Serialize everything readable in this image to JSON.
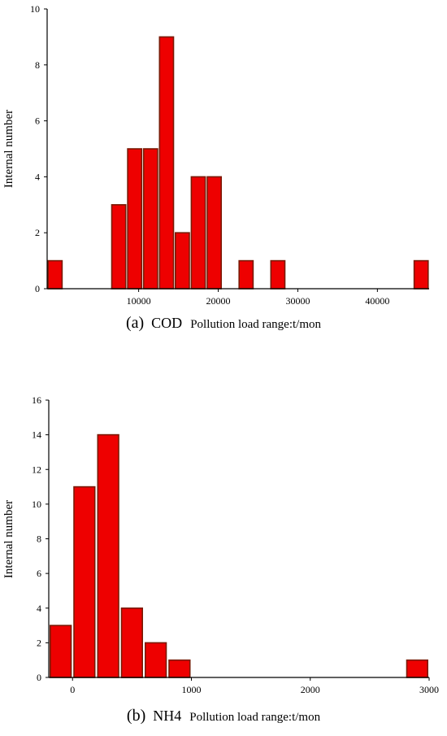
{
  "chart_data": [
    {
      "type": "bar",
      "panel_label": "(a)",
      "series_label": "COD",
      "xlabel": "Pollution load range:t/mon",
      "ylabel": "Internal number",
      "xlim": [
        -1500,
        46500
      ],
      "ylim": [
        0,
        10
      ],
      "xticks": [
        10000,
        20000,
        30000,
        40000
      ],
      "yticks": [
        0,
        2,
        4,
        6,
        8,
        10
      ],
      "bin_width": 2000,
      "bars": [
        {
          "x": -500,
          "value": 1
        },
        {
          "x": 7500,
          "value": 3
        },
        {
          "x": 9500,
          "value": 5
        },
        {
          "x": 11500,
          "value": 5
        },
        {
          "x": 13500,
          "value": 9
        },
        {
          "x": 15500,
          "value": 2
        },
        {
          "x": 17500,
          "value": 4
        },
        {
          "x": 19500,
          "value": 4
        },
        {
          "x": 23500,
          "value": 1
        },
        {
          "x": 27500,
          "value": 1
        },
        {
          "x": 45500,
          "value": 1
        }
      ],
      "bar_color": "#ee0000",
      "bar_edge_color": "#7a1a05"
    },
    {
      "type": "bar",
      "panel_label": "(b)",
      "series_label": "NH4",
      "xlabel": "Pollution load range:t/mon",
      "ylabel": "Internal number",
      "xlim": [
        -200,
        3000
      ],
      "ylim": [
        0,
        16
      ],
      "xticks": [
        0,
        1000,
        2000,
        3000
      ],
      "yticks": [
        0,
        2,
        4,
        6,
        8,
        10,
        12,
        14,
        16
      ],
      "bin_width": 200,
      "bars": [
        {
          "x": -100,
          "value": 3
        },
        {
          "x": 100,
          "value": 11
        },
        {
          "x": 300,
          "value": 14
        },
        {
          "x": 500,
          "value": 4
        },
        {
          "x": 700,
          "value": 2
        },
        {
          "x": 900,
          "value": 1
        },
        {
          "x": 2900,
          "value": 1
        }
      ],
      "bar_color": "#ee0000",
      "bar_edge_color": "#7a1a05"
    }
  ]
}
